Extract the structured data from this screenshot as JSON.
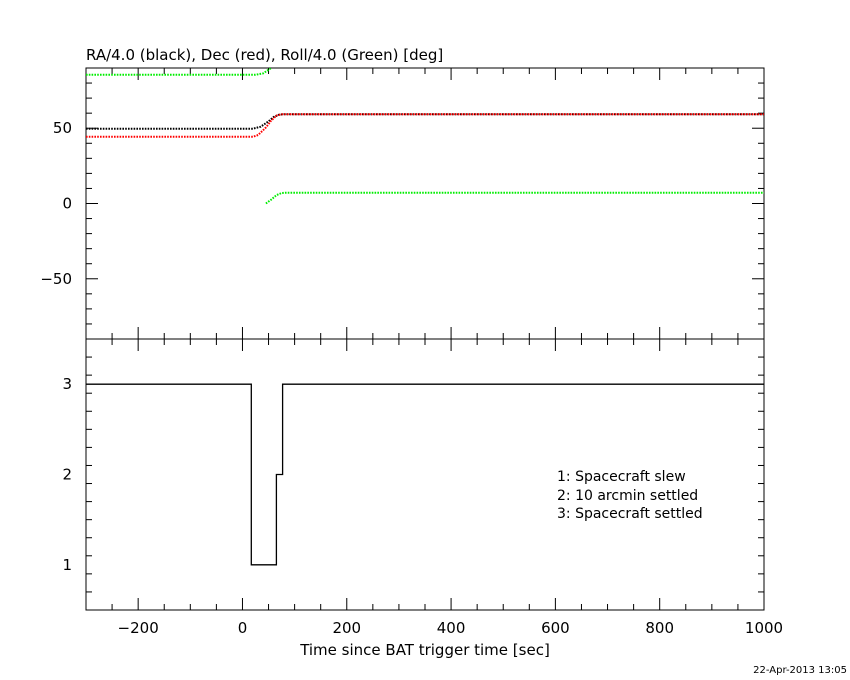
{
  "chart_data": [
    {
      "type": "line",
      "title": "RA/4.0 (black), Dec (red), Roll/4.0 (Green) [deg]",
      "xlim": [
        -300,
        1000
      ],
      "ylim": [
        -90,
        90
      ],
      "yticks": [
        -50,
        0,
        50
      ],
      "yticklabels": [
        "−50",
        "0",
        "50"
      ],
      "grid": false,
      "series": [
        {
          "name": "RA/4.0",
          "color": "#000000",
          "segments": [
            [
              [
                -300,
                49.7
              ],
              [
                20,
                49.7
              ],
              [
                35,
                51
              ],
              [
                50,
                54.5
              ],
              [
                60,
                57.5
              ],
              [
                70,
                59
              ],
              [
                80,
                59.3
              ],
              [
                1000,
                59.3
              ]
            ]
          ]
        },
        {
          "name": "Dec",
          "color": "#ff0000",
          "segments": [
            [
              [
                -300,
                44.3
              ],
              [
                20,
                44.3
              ],
              [
                30,
                45.5
              ],
              [
                45,
                50.5
              ],
              [
                55,
                55
              ],
              [
                65,
                58.3
              ],
              [
                75,
                59.3
              ],
              [
                1000,
                59.3
              ]
            ]
          ]
        },
        {
          "name": "Roll/4.0",
          "color": "#00ee00",
          "segments": [
            [
              [
                -300,
                85.5
              ],
              [
                25,
                85.5
              ],
              [
                40,
                86.5
              ],
              [
                55,
                90
              ]
            ],
            [
              [
                45,
                0
              ],
              [
                55,
                2.5
              ],
              [
                65,
                5.5
              ],
              [
                75,
                7
              ],
              [
                85,
                7.2
              ],
              [
                1000,
                7.2
              ]
            ]
          ]
        }
      ]
    },
    {
      "type": "line",
      "title": "",
      "xlabel": "Time since BAT trigger time [sec]",
      "xlim": [
        -300,
        1000
      ],
      "ylim": [
        0.5,
        3.5
      ],
      "xticks": [
        -200,
        0,
        200,
        400,
        600,
        800,
        1000
      ],
      "xticklabels": [
        "−200",
        "0",
        "200",
        "400",
        "600",
        "800",
        "1000"
      ],
      "yticks": [
        1,
        2,
        3
      ],
      "yticklabels": [
        "1",
        "2",
        "3"
      ],
      "grid": false,
      "series": [
        {
          "color": "#000000",
          "step": true,
          "points": [
            [
              -300,
              3
            ],
            [
              17,
              3
            ],
            [
              17,
              1
            ],
            [
              65,
              1
            ],
            [
              65,
              2
            ],
            [
              77,
              2
            ],
            [
              77,
              3
            ],
            [
              1000,
              3
            ]
          ]
        }
      ],
      "legend_lines": [
        "1: Spacecraft slew",
        "2: 10 arcmin settled",
        "3: Spacecraft settled"
      ]
    }
  ],
  "footer": {
    "timestamp": "22-Apr-2013 13:05"
  }
}
